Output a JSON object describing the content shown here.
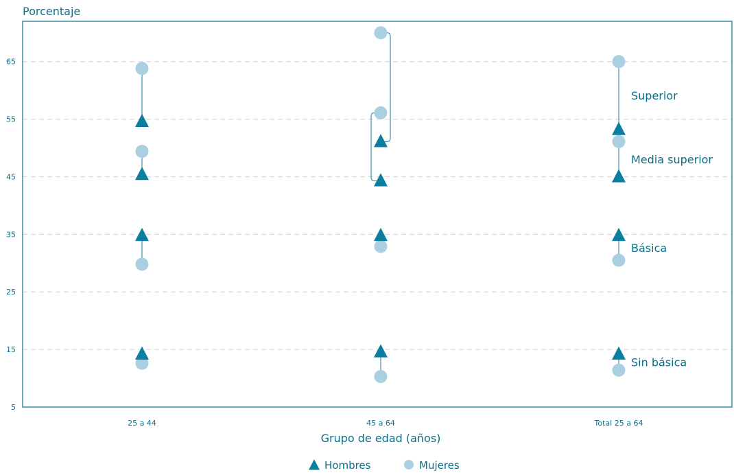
{
  "chart_data": {
    "type": "scatter",
    "ylabel": "Porcentaje",
    "xlabel": "Grupo de edad (años)",
    "categories": [
      "25 a 44",
      "45 a 64",
      "Total 25 a 64"
    ],
    "ylim": [
      5,
      72
    ],
    "yticks": [
      5,
      15,
      25,
      35,
      45,
      55,
      65
    ],
    "grid": true,
    "series": [
      {
        "name": "Hombres",
        "marker": "triangle",
        "color": "#0b7fa0"
      },
      {
        "name": "Mujeres",
        "marker": "circle",
        "color": "#a9cfe0"
      }
    ],
    "levels": [
      {
        "name": "Sin básica",
        "hombres": [
          14.2,
          14.6,
          14.2
        ],
        "mujeres": [
          12.6,
          10.3,
          11.4
        ]
      },
      {
        "name": "Básica",
        "hombres": [
          34.8,
          34.8,
          34.8
        ],
        "mujeres": [
          29.8,
          32.9,
          30.5
        ]
      },
      {
        "name": "Media superior",
        "hombres": [
          45.4,
          44.3,
          45.0
        ],
        "mujeres": [
          49.4,
          56.1,
          51.1
        ]
      },
      {
        "name": "Superior",
        "hombres": [
          54.6,
          51.1,
          53.2
        ],
        "mujeres": [
          63.8,
          70.0,
          65.0
        ]
      }
    ],
    "legend": "bottom-center",
    "colors": {
      "axis": "#0b6e8a",
      "grid": "#d9d9d9",
      "connector": "#4a9ab3"
    }
  }
}
